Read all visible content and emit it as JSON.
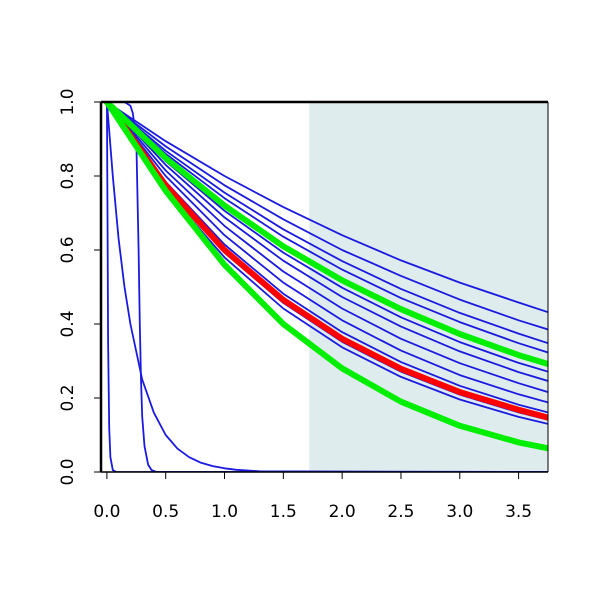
{
  "chart_data": {
    "type": "line",
    "title": "",
    "xlabel": "",
    "ylabel": "",
    "xlim": [
      -0.05,
      3.75
    ],
    "ylim": [
      0,
      1
    ],
    "x_ticks": [
      0.0,
      0.5,
      1.0,
      1.5,
      2.0,
      2.5,
      3.0,
      3.5
    ],
    "x_tick_labels": [
      "0.0",
      "0.5",
      "1.0",
      "1.5",
      "2.0",
      "2.5",
      "3.0",
      "3.5"
    ],
    "y_ticks": [
      0.0,
      0.2,
      0.4,
      0.6,
      0.8,
      1.0
    ],
    "y_tick_labels": [
      "0.0",
      "0.2",
      "0.4",
      "0.6",
      "0.8",
      "1.0"
    ],
    "shaded_region": {
      "x_from": 1.72,
      "x_to": 3.75,
      "color": "#dfeced"
    },
    "grid": false,
    "legend": "none",
    "colors": {
      "thin": "#1a1ae0",
      "red": "#ff0000",
      "green": "#00ee00",
      "axis": "#000000"
    },
    "series": [
      {
        "style": "thin",
        "color": "#1a1ae0",
        "x": [
          0,
          0.005,
          0.01,
          0.02,
          0.03,
          0.05,
          0.08,
          3.75
        ],
        "y": [
          1.0,
          0.7,
          0.35,
          0.12,
          0.04,
          0.005,
          0.0,
          0.0
        ]
      },
      {
        "style": "thin",
        "color": "#1a1ae0",
        "x": [
          0,
          0.05,
          0.1,
          0.15,
          0.2,
          0.3,
          0.4,
          0.5,
          0.6,
          0.7,
          0.8,
          0.9,
          1.0,
          1.1,
          1.2,
          1.3,
          3.75
        ],
        "y": [
          1.0,
          0.8,
          0.63,
          0.5,
          0.4,
          0.25,
          0.16,
          0.1,
          0.063,
          0.04,
          0.025,
          0.016,
          0.01,
          0.006,
          0.004,
          0.002,
          0.0
        ]
      },
      {
        "style": "thin",
        "color": "#1a1ae0",
        "x": [
          0,
          0.15,
          0.2,
          0.22,
          0.25,
          0.27,
          0.28,
          0.29,
          0.3,
          0.32,
          0.35,
          0.38,
          0.42,
          3.75
        ],
        "y": [
          1.0,
          1.0,
          0.99,
          0.97,
          0.9,
          0.6,
          0.4,
          0.25,
          0.15,
          0.07,
          0.02,
          0.005,
          0.0,
          0.0
        ]
      },
      {
        "style": "thin",
        "color": "#1a1ae0",
        "x": [
          0,
          0.5,
          1.0,
          1.5,
          2.0,
          2.5,
          3.0,
          3.5,
          3.75
        ],
        "y": [
          1.0,
          0.868,
          0.755,
          0.656,
          0.57,
          0.495,
          0.43,
          0.374,
          0.348
        ]
      },
      {
        "style": "thin",
        "color": "#1a1ae0",
        "x": [
          0,
          0.5,
          1.0,
          1.5,
          2.0,
          2.5,
          3.0,
          3.5,
          3.75
        ],
        "y": [
          1.0,
          0.894,
          0.8,
          0.716,
          0.64,
          0.572,
          0.512,
          0.458,
          0.432
        ]
      },
      {
        "style": "thin",
        "color": "#1a1ae0",
        "x": [
          0,
          0.5,
          1.0,
          1.5,
          2.0,
          2.5,
          3.0,
          3.5,
          3.75
        ],
        "y": [
          1.0,
          0.88,
          0.775,
          0.683,
          0.6,
          0.53,
          0.466,
          0.41,
          0.385
        ]
      },
      {
        "style": "thin",
        "color": "#1a1ae0",
        "x": [
          0,
          0.5,
          1.0,
          1.5,
          2.0,
          2.5,
          3.0,
          3.5,
          3.75
        ],
        "y": [
          1.0,
          0.86,
          0.74,
          0.636,
          0.547,
          0.47,
          0.405,
          0.348,
          0.323
        ]
      },
      {
        "style": "thin",
        "color": "#1a1ae0",
        "x": [
          0,
          0.5,
          1.0,
          1.5,
          2.0,
          2.5,
          3.0,
          3.5,
          3.75
        ],
        "y": [
          1.0,
          0.848,
          0.72,
          0.61,
          0.518,
          0.44,
          0.373,
          0.316,
          0.292
        ]
      },
      {
        "style": "thin",
        "color": "#1a1ae0",
        "x": [
          0,
          0.5,
          1.0,
          1.5,
          2.0,
          2.5,
          3.0,
          3.5,
          3.75
        ],
        "y": [
          1.0,
          0.84,
          0.706,
          0.593,
          0.498,
          0.418,
          0.351,
          0.295,
          0.271
        ]
      },
      {
        "style": "thin",
        "color": "#1a1ae0",
        "x": [
          0,
          0.5,
          1.0,
          1.5,
          2.0,
          2.5,
          3.0,
          3.5,
          3.75
        ],
        "y": [
          1.0,
          0.83,
          0.688,
          0.571,
          0.473,
          0.393,
          0.326,
          0.27,
          0.246
        ]
      },
      {
        "style": "thin",
        "color": "#1a1ae0",
        "x": [
          0,
          0.5,
          1.0,
          1.5,
          2.0,
          2.5,
          3.0,
          3.5,
          3.75
        ],
        "y": [
          1.0,
          0.815,
          0.665,
          0.542,
          0.442,
          0.36,
          0.294,
          0.24,
          0.216
        ]
      },
      {
        "style": "thin",
        "color": "#1a1ae0",
        "x": [
          0,
          0.5,
          1.0,
          1.5,
          2.0,
          2.5,
          3.0,
          3.5,
          3.75
        ],
        "y": [
          1.0,
          0.8,
          0.64,
          0.512,
          0.41,
          0.328,
          0.262,
          0.21,
          0.188
        ]
      },
      {
        "style": "thin",
        "color": "#1a1ae0",
        "x": [
          0,
          0.5,
          1.0,
          1.5,
          2.0,
          2.5,
          3.0,
          3.5,
          3.75
        ],
        "y": [
          1.0,
          0.784,
          0.615,
          0.482,
          0.378,
          0.297,
          0.233,
          0.182,
          0.161
        ]
      },
      {
        "style": "thin",
        "color": "#1a1ae0",
        "x": [
          0,
          0.5,
          1.0,
          1.5,
          2.0,
          2.5,
          3.0,
          3.5,
          3.75
        ],
        "y": [
          1.0,
          0.77,
          0.593,
          0.457,
          0.352,
          0.271,
          0.209,
          0.161,
          0.141
        ]
      },
      {
        "style": "thin",
        "color": "#1a1ae0",
        "x": [
          0,
          0.5,
          1.0,
          1.5,
          2.0,
          2.5,
          3.0,
          3.5,
          3.75
        ],
        "y": [
          1.0,
          0.762,
          0.58,
          0.442,
          0.337,
          0.257,
          0.196,
          0.149,
          0.13
        ]
      },
      {
        "style": "thick",
        "color": "#ff0000",
        "x": [
          0,
          0.5,
          1.0,
          1.5,
          2.0,
          2.5,
          3.0,
          3.5,
          3.75
        ],
        "y": [
          1.0,
          0.775,
          0.6,
          0.465,
          0.36,
          0.279,
          0.216,
          0.168,
          0.147
        ]
      },
      {
        "style": "thick",
        "color": "#00ee00",
        "x": [
          0,
          0.5,
          1.0,
          1.5,
          2.0,
          2.5,
          3.0,
          3.5,
          3.75
        ],
        "y": [
          1.0,
          0.848,
          0.72,
          0.61,
          0.518,
          0.44,
          0.373,
          0.316,
          0.292
        ]
      },
      {
        "style": "thick",
        "color": "#00ee00",
        "x": [
          0,
          0.5,
          1.0,
          1.5,
          2.0,
          2.5,
          3.0,
          3.5,
          3.75
        ],
        "y": [
          1.0,
          0.76,
          0.56,
          0.4,
          0.28,
          0.19,
          0.125,
          0.08,
          0.064
        ]
      }
    ]
  }
}
